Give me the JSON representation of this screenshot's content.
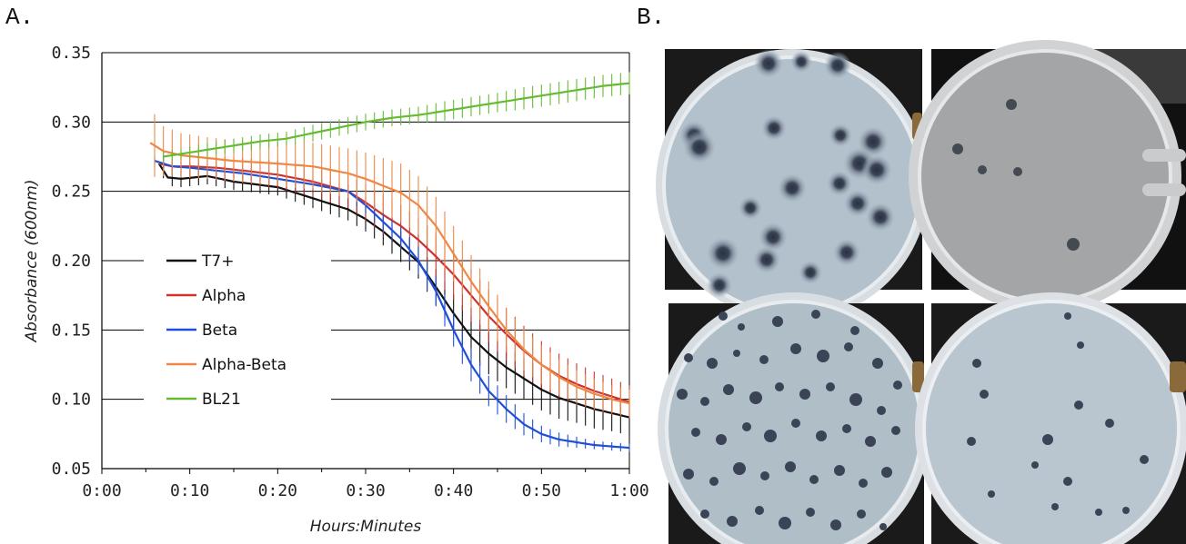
{
  "panels": {
    "a_label": "A.",
    "b_label": "B."
  },
  "chart_data": {
    "type": "line",
    "xlabel": "Hours:Minutes",
    "ylabel": "Absorbance (600nm)",
    "xlim": [
      0,
      60
    ],
    "ylim": [
      0.05,
      0.35
    ],
    "x_ticks": [
      0,
      10,
      20,
      30,
      40,
      50,
      60
    ],
    "x_tick_labels": [
      "0:00",
      "0:10",
      "0:20",
      "0:30",
      "0:40",
      "0:50",
      "1:00"
    ],
    "y_ticks": [
      0.05,
      0.1,
      0.15,
      0.2,
      0.25,
      0.3,
      0.35
    ],
    "y_tick_labels": [
      "0.05",
      "0.10",
      "0.15",
      "0.20",
      "0.25",
      "0.30",
      "0.35"
    ],
    "grid": "horizontal",
    "legend_position": "center-left",
    "series": [
      {
        "name": "T7+",
        "color": "#111111",
        "x": [
          6.5,
          7.5,
          9,
          12,
          15,
          20,
          24,
          28,
          30,
          32,
          34,
          36,
          38,
          40,
          42,
          44,
          46,
          48,
          50,
          52,
          54,
          56,
          58,
          60
        ],
        "y": [
          0.27,
          0.26,
          0.259,
          0.261,
          0.257,
          0.253,
          0.245,
          0.237,
          0.23,
          0.221,
          0.21,
          0.199,
          0.181,
          0.162,
          0.145,
          0.133,
          0.123,
          0.115,
          0.107,
          0.101,
          0.097,
          0.093,
          0.09,
          0.087
        ],
        "err": [
          0.005,
          0.006,
          0.006,
          0.006,
          0.006,
          0.006,
          0.007,
          0.008,
          0.009,
          0.01,
          0.011,
          0.012,
          0.013,
          0.014,
          0.015,
          0.015,
          0.015,
          0.015,
          0.015,
          0.015,
          0.014,
          0.014,
          0.013,
          0.013
        ]
      },
      {
        "name": "Alpha",
        "color": "#cc3333",
        "x": [
          6.5,
          8,
          10,
          13,
          16,
          20,
          24,
          28,
          30,
          32,
          34,
          36,
          38,
          40,
          42,
          44,
          46,
          48,
          50,
          52,
          54,
          56,
          58,
          60
        ],
        "y": [
          0.27,
          0.268,
          0.268,
          0.267,
          0.265,
          0.262,
          0.257,
          0.25,
          0.242,
          0.233,
          0.225,
          0.215,
          0.203,
          0.19,
          0.175,
          0.16,
          0.147,
          0.135,
          0.125,
          0.117,
          0.111,
          0.106,
          0.102,
          0.098
        ],
        "err": [
          0.005,
          0.006,
          0.007,
          0.008,
          0.009,
          0.01,
          0.011,
          0.012,
          0.013,
          0.014,
          0.015,
          0.016,
          0.017,
          0.018,
          0.019,
          0.019,
          0.019,
          0.018,
          0.017,
          0.016,
          0.015,
          0.014,
          0.013,
          0.012
        ]
      },
      {
        "name": "Beta",
        "color": "#1f4fd6",
        "x": [
          6,
          8,
          10,
          13,
          16,
          20,
          24,
          28,
          30,
          32,
          34,
          36,
          38,
          40,
          42,
          44,
          46,
          48,
          50,
          52,
          54,
          56,
          58,
          60
        ],
        "y": [
          0.272,
          0.268,
          0.267,
          0.265,
          0.263,
          0.259,
          0.255,
          0.25,
          0.24,
          0.228,
          0.216,
          0.2,
          0.178,
          0.15,
          0.125,
          0.106,
          0.093,
          0.082,
          0.075,
          0.071,
          0.069,
          0.067,
          0.066,
          0.065
        ],
        "err": [
          0.004,
          0.004,
          0.004,
          0.004,
          0.004,
          0.004,
          0.004,
          0.005,
          0.006,
          0.007,
          0.008,
          0.01,
          0.011,
          0.012,
          0.012,
          0.011,
          0.01,
          0.008,
          0.006,
          0.005,
          0.004,
          0.003,
          0.003,
          0.003
        ]
      },
      {
        "name": "Alpha-Beta",
        "color": "#ee8844",
        "x": [
          5.5,
          7,
          9,
          12,
          15,
          20,
          24,
          28,
          30,
          32,
          34,
          36,
          38,
          40,
          42,
          44,
          46,
          48,
          50,
          52,
          54,
          56,
          58,
          60
        ],
        "y": [
          0.285,
          0.279,
          0.276,
          0.274,
          0.272,
          0.27,
          0.268,
          0.263,
          0.259,
          0.254,
          0.249,
          0.24,
          0.225,
          0.205,
          0.185,
          0.167,
          0.15,
          0.136,
          0.125,
          0.116,
          0.109,
          0.104,
          0.1,
          0.097
        ],
        "err": [
          0.025,
          0.018,
          0.016,
          0.015,
          0.015,
          0.016,
          0.017,
          0.018,
          0.019,
          0.02,
          0.021,
          0.021,
          0.021,
          0.02,
          0.019,
          0.018,
          0.016,
          0.015,
          0.014,
          0.013,
          0.012,
          0.011,
          0.01,
          0.01
        ]
      },
      {
        "name": "BL21",
        "color": "#66bb33",
        "x": [
          7,
          9,
          12,
          15,
          18,
          21,
          24,
          27,
          30,
          33,
          36,
          39,
          42,
          45,
          48,
          51,
          54,
          57,
          60
        ],
        "y": [
          0.275,
          0.277,
          0.28,
          0.283,
          0.286,
          0.288,
          0.292,
          0.296,
          0.3,
          0.303,
          0.305,
          0.308,
          0.311,
          0.314,
          0.317,
          0.32,
          0.323,
          0.326,
          0.328
        ],
        "err": [
          0.004,
          0.004,
          0.005,
          0.005,
          0.005,
          0.005,
          0.006,
          0.006,
          0.006,
          0.006,
          0.006,
          0.007,
          0.007,
          0.007,
          0.008,
          0.008,
          0.008,
          0.008,
          0.008
        ]
      }
    ]
  },
  "plates": {
    "tiles": [
      {
        "name": "plate-top-left",
        "plaques": "large"
      },
      {
        "name": "plate-top-right",
        "plaques": "few"
      },
      {
        "name": "plate-bottom-left",
        "plaques": "many-small"
      },
      {
        "name": "plate-bottom-right",
        "plaques": "sparse-small"
      }
    ]
  }
}
